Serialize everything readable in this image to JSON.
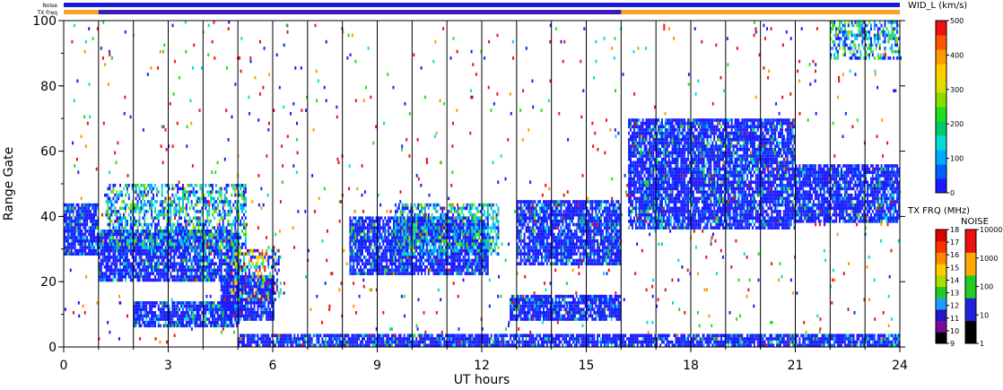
{
  "header": {
    "noise_label": "Noise",
    "txfreq_label": "TX Freq"
  },
  "chart_data": {
    "type": "heatmap",
    "xlabel": "UT hours",
    "ylabel": "Range Gate",
    "xlim": [
      0,
      24
    ],
    "ylim": [
      0,
      100
    ],
    "x_ticks": [
      "0",
      "3",
      "6",
      "9",
      "12",
      "15",
      "18",
      "21",
      "24"
    ],
    "y_ticks": [
      "0",
      "20",
      "40",
      "60",
      "80",
      "100"
    ],
    "grid": "vertical hourly lines",
    "top_bars": {
      "noise_color": "#1a1ad8",
      "txfreq_color": "#f5a623",
      "txfreq_segment_color": "#3a1ab8",
      "txfreq_segment_start": 1,
      "txfreq_segment_end": 16
    },
    "colorbar_width": {
      "title": "WID_L (km/s)",
      "ticks": [
        "0",
        "100",
        "200",
        "300",
        "400",
        "500"
      ],
      "colors": [
        "#1a1aff",
        "#0060ff",
        "#00aaff",
        "#00dddd",
        "#00cc66",
        "#22dd22",
        "#88dd00",
        "#dddd00",
        "#ffcc00",
        "#ff9900",
        "#ff5500",
        "#ee1111"
      ]
    },
    "colorbar_txfrq": {
      "title": "TX FRQ (MHz)",
      "ticks": [
        "9",
        "10",
        "11",
        "12",
        "13",
        "14",
        "15",
        "16",
        "17",
        "18"
      ],
      "colors": [
        "#000000",
        "#7a0a9a",
        "#2a14c8",
        "#1aa0ff",
        "#22cc22",
        "#aadd00",
        "#ffcc00",
        "#ff8800",
        "#ff3300",
        "#dd0000"
      ]
    },
    "colorbar_noise": {
      "title": "NOISE",
      "ticks": [
        "1",
        "10",
        "100",
        "1000",
        "10000"
      ],
      "colors": [
        "#000000",
        "#2222dd",
        "#22cc22",
        "#ffaa00",
        "#ee1111"
      ]
    },
    "regions": [
      {
        "t0": 0.0,
        "t1": 1.0,
        "g0": 28,
        "g1": 44,
        "w": "low"
      },
      {
        "t0": 1.0,
        "t1": 5.0,
        "g0": 20,
        "g1": 36,
        "w": "low"
      },
      {
        "t0": 1.2,
        "t1": 5.2,
        "g0": 30,
        "g1": 50,
        "w": "mid"
      },
      {
        "t0": 2.0,
        "t1": 5.0,
        "g0": 6,
        "g1": 14,
        "w": "low"
      },
      {
        "t0": 4.5,
        "t1": 6.0,
        "g0": 8,
        "g1": 22,
        "w": "low"
      },
      {
        "t0": 4.8,
        "t1": 6.2,
        "g0": 14,
        "g1": 30,
        "w": "mixed"
      },
      {
        "t0": 8.2,
        "t1": 12.2,
        "g0": 22,
        "g1": 40,
        "w": "low"
      },
      {
        "t0": 9.5,
        "t1": 12.5,
        "g0": 28,
        "g1": 44,
        "w": "mid"
      },
      {
        "t0": 13.0,
        "t1": 16.0,
        "g0": 25,
        "g1": 45,
        "w": "low"
      },
      {
        "t0": 12.8,
        "t1": 16.0,
        "g0": 8,
        "g1": 16,
        "w": "low"
      },
      {
        "t0": 16.2,
        "t1": 21.0,
        "g0": 36,
        "g1": 70,
        "w": "low"
      },
      {
        "t0": 21.0,
        "t1": 24.0,
        "g0": 38,
        "g1": 56,
        "w": "low"
      },
      {
        "t0": 22.0,
        "t1": 24.0,
        "g0": 88,
        "g1": 100,
        "w": "mid"
      },
      {
        "t0": 5.0,
        "t1": 24.0,
        "g0": 0,
        "g1": 4,
        "w": "low"
      }
    ]
  }
}
